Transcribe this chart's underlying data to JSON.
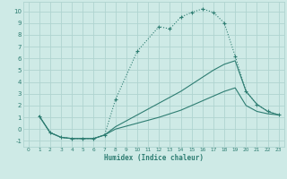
{
  "xlabel": "Humidex (Indice chaleur)",
  "bg_color": "#ceeae6",
  "grid_color": "#afd4d0",
  "line_color": "#2e7d72",
  "xlim": [
    -0.5,
    23.5
  ],
  "ylim": [
    -1.5,
    10.8
  ],
  "xticks": [
    0,
    1,
    2,
    3,
    4,
    5,
    6,
    7,
    8,
    9,
    10,
    11,
    12,
    13,
    14,
    15,
    16,
    17,
    18,
    19,
    20,
    21,
    22,
    23
  ],
  "yticks": [
    -1,
    0,
    1,
    2,
    3,
    4,
    5,
    6,
    7,
    8,
    9,
    10
  ],
  "curve1_x": [
    1,
    2,
    3,
    4,
    5,
    6,
    7,
    8,
    10,
    12,
    13,
    14,
    15,
    16,
    17,
    18,
    19,
    20,
    21,
    22,
    23
  ],
  "curve1_y": [
    1.1,
    -0.3,
    -0.7,
    -0.8,
    -0.8,
    -0.8,
    -0.5,
    2.5,
    6.6,
    8.7,
    8.5,
    9.5,
    9.9,
    10.2,
    9.9,
    9.0,
    6.2,
    3.2,
    2.1,
    1.5,
    1.2
  ],
  "curve2_x": [
    1,
    2,
    3,
    4,
    5,
    6,
    7,
    8,
    10,
    12,
    13,
    14,
    15,
    16,
    17,
    18,
    19,
    20,
    21,
    22,
    23
  ],
  "curve2_y": [
    1.1,
    -0.3,
    -0.7,
    -0.8,
    -0.8,
    -0.8,
    -0.5,
    0.2,
    1.2,
    2.2,
    2.7,
    3.2,
    3.8,
    4.4,
    5.0,
    5.5,
    5.8,
    3.2,
    2.1,
    1.5,
    1.2
  ],
  "curve3_x": [
    1,
    2,
    3,
    4,
    5,
    6,
    7,
    8,
    10,
    12,
    13,
    14,
    15,
    16,
    17,
    18,
    19,
    20,
    21,
    22,
    23
  ],
  "curve3_y": [
    1.1,
    -0.3,
    -0.7,
    -0.8,
    -0.8,
    -0.8,
    -0.5,
    0.0,
    0.5,
    1.0,
    1.3,
    1.6,
    2.0,
    2.4,
    2.8,
    3.2,
    3.5,
    2.0,
    1.5,
    1.3,
    1.2
  ]
}
